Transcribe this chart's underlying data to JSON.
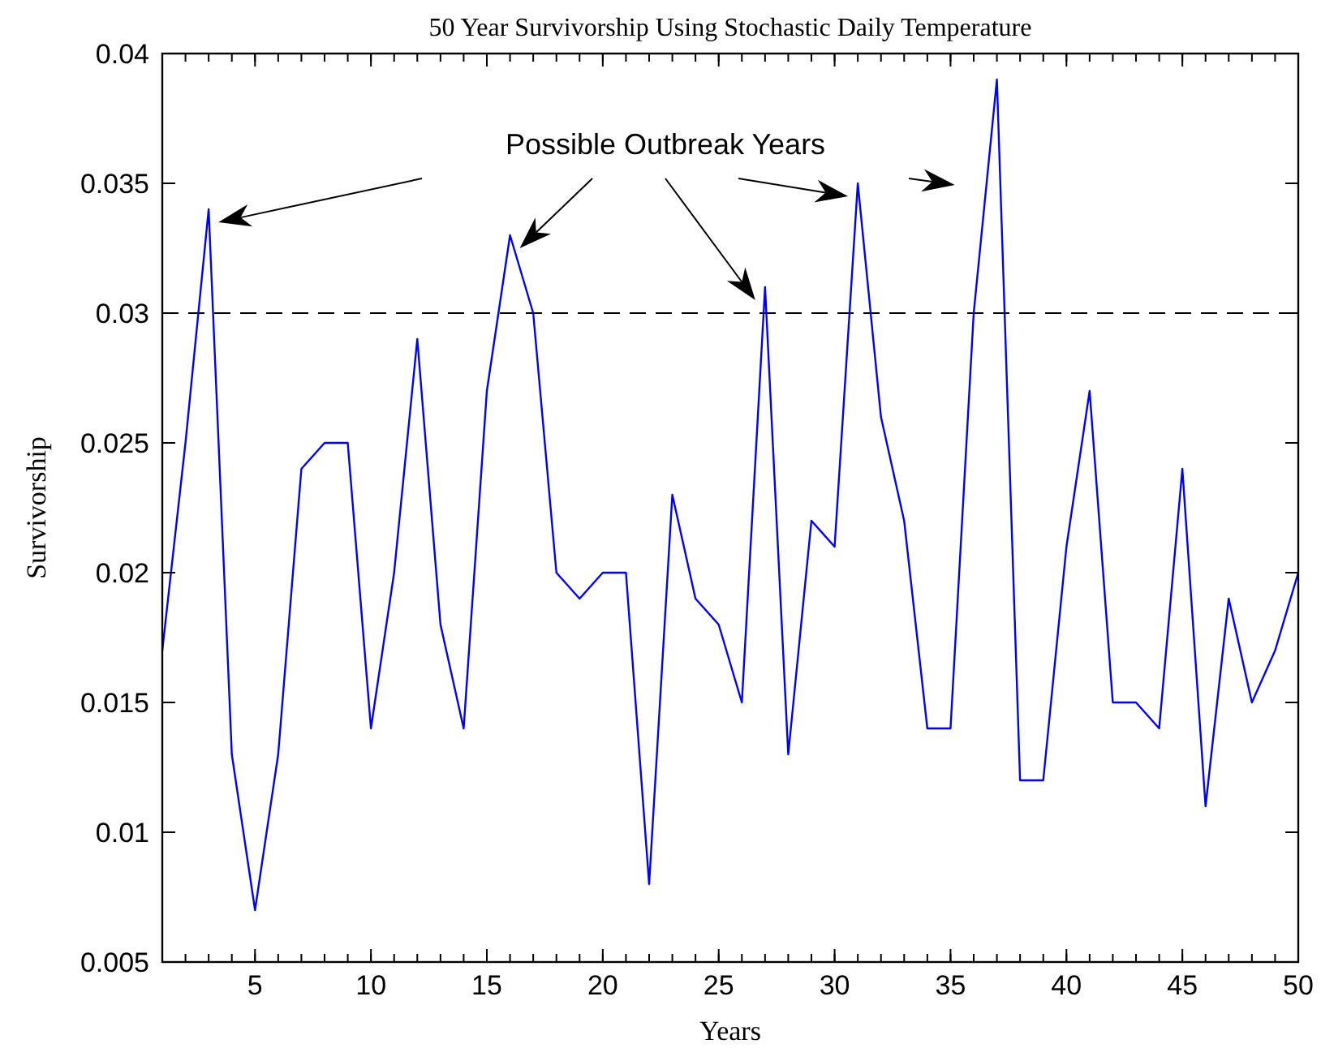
{
  "chart_data": {
    "type": "line",
    "title": "50 Year Survivorship Using Stochastic Daily Temperature",
    "xlabel": "Years",
    "ylabel": "Survivorship",
    "annotations": [
      "Possible Outbreak Years"
    ],
    "x": [
      1,
      2,
      3,
      4,
      5,
      6,
      7,
      8,
      9,
      10,
      11,
      12,
      13,
      14,
      15,
      16,
      17,
      18,
      19,
      20,
      21,
      22,
      23,
      24,
      25,
      26,
      27,
      28,
      29,
      30,
      31,
      32,
      33,
      34,
      35,
      36,
      37,
      38,
      39,
      40,
      41,
      42,
      43,
      44,
      45,
      46,
      47,
      48,
      49,
      50
    ],
    "series": [
      {
        "color": "#0000ff",
        "values": [
          0.017,
          0.025,
          0.034,
          0.013,
          0.007,
          0.013,
          0.024,
          0.025,
          0.025,
          0.014,
          0.02,
          0.029,
          0.018,
          0.014,
          0.027,
          0.033,
          0.03,
          0.02,
          0.019,
          0.02,
          0.02,
          0.008,
          0.023,
          0.019,
          0.018,
          0.015,
          0.031,
          0.013,
          0.022,
          0.021,
          0.035,
          0.026,
          0.022,
          0.014,
          0.014,
          0.03,
          0.039,
          0.012,
          0.012,
          0.021,
          0.027,
          0.015,
          0.015,
          0.014,
          0.024,
          0.011,
          0.019,
          0.015,
          0.017,
          0.02
        ]
      }
    ],
    "xlim": [
      1,
      50
    ],
    "xticks": [
      5,
      10,
      15,
      20,
      25,
      30,
      35,
      40,
      45,
      50
    ],
    "ylim": [
      0.005,
      0.04
    ],
    "yticks": [
      0.005,
      0.01,
      0.015,
      0.02,
      0.025,
      0.03,
      0.035,
      0.04
    ],
    "ref_lines": [
      {
        "axis": "y",
        "value": 0.03,
        "color": "#000000",
        "line_style": "dashed"
      }
    ],
    "grid": false,
    "marker": "none",
    "line_style": "solid"
  }
}
